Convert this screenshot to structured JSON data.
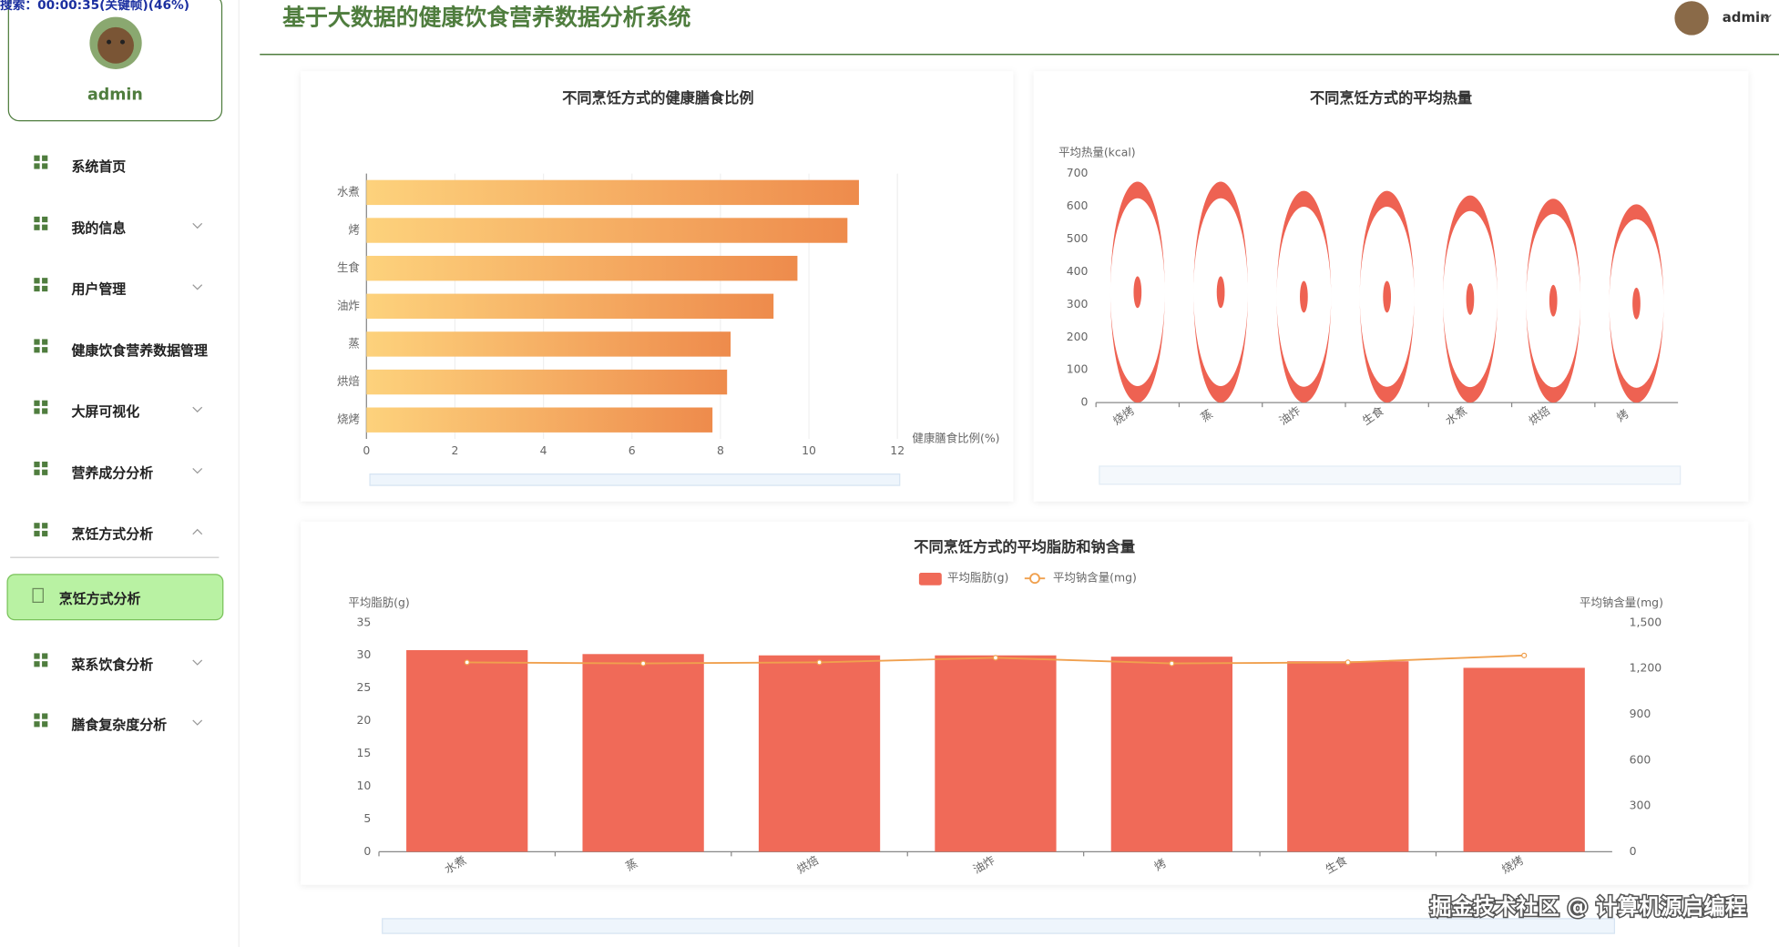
{
  "overlay": "搜索：00:00:35(关键帧)(46%)",
  "header": {
    "title": "基于大数据的健康饮食营养数据分析系统",
    "user": "admin"
  },
  "sidebar": {
    "user": "admin",
    "menu": [
      "系统首页",
      "我的信息",
      "用户管理",
      "健康饮食营养数据管理",
      "大屏可视化",
      "营养成分分析",
      "烹饪方式分析"
    ],
    "active": "烹饪方式分析",
    "menu2": [
      "菜系饮食分析",
      "膳食复杂度分析"
    ]
  },
  "watermark": "掘金技术社区 @ 计算机源启编程",
  "chart_data": [
    {
      "type": "bar",
      "orientation": "horizontal",
      "title": "不同烹饪方式的健康膳食比例",
      "x_label": "健康膳食比例(%)",
      "categories": [
        "水煮",
        "烤",
        "生食",
        "油炸",
        "蒸",
        "烘焙",
        "烧烤"
      ],
      "values": [
        11.13,
        10.87,
        9.74,
        9.2,
        8.23,
        8.15,
        7.82
      ],
      "color": [
        "#fdd27c",
        "#ee8b4c"
      ],
      "xlim": [
        0,
        12
      ],
      "xticks": [
        0,
        2,
        4,
        6,
        8,
        10,
        12
      ],
      "grid": true
    },
    {
      "type": "pictorialBar",
      "title": "不同烹饪方式的平均热量",
      "y_label": "平均热量(kcal)",
      "categories": [
        "烧烤",
        "蒸",
        "油炸",
        "生食",
        "水煮",
        "烘焙",
        "烤"
      ],
      "values": [
        675,
        675,
        647,
        647,
        633,
        623,
        606
      ],
      "color": "#ee6252",
      "ylim": [
        0,
        700
      ],
      "yticks": [
        0,
        100,
        200,
        300,
        400,
        500,
        600,
        700
      ],
      "grid": false
    },
    {
      "type": "bar",
      "title": "不同烹饪方式的平均脂肪和钠含量",
      "y_label": "平均脂肪(g)",
      "y2_label": "平均钠含量(mg)",
      "categories": [
        "水煮",
        "蒸",
        "烘焙",
        "油炸",
        "烤",
        "生食",
        "烧烤"
      ],
      "series": [
        {
          "name": "平均脂肪(g)",
          "type": "bar",
          "color": "#f06a58",
          "values": [
            30.8,
            30.2,
            30.0,
            30.0,
            29.8,
            29.1,
            28.1
          ]
        },
        {
          "name": "平均钠含量(mg)",
          "type": "line",
          "axis": "y2",
          "color": "#f0a04e",
          "values": [
            1240,
            1233,
            1240,
            1270,
            1233,
            1240,
            1285
          ]
        }
      ],
      "ylim": [
        0,
        35
      ],
      "yticks": [
        0,
        5,
        10,
        15,
        20,
        25,
        30,
        35
      ],
      "y2lim": [
        0,
        1500
      ],
      "y2ticks": [
        0,
        300,
        600,
        900,
        {
          "value": 1200,
          "label": "1,200"
        },
        {
          "value": 1500,
          "label": "1,500"
        }
      ],
      "grid": false
    }
  ]
}
